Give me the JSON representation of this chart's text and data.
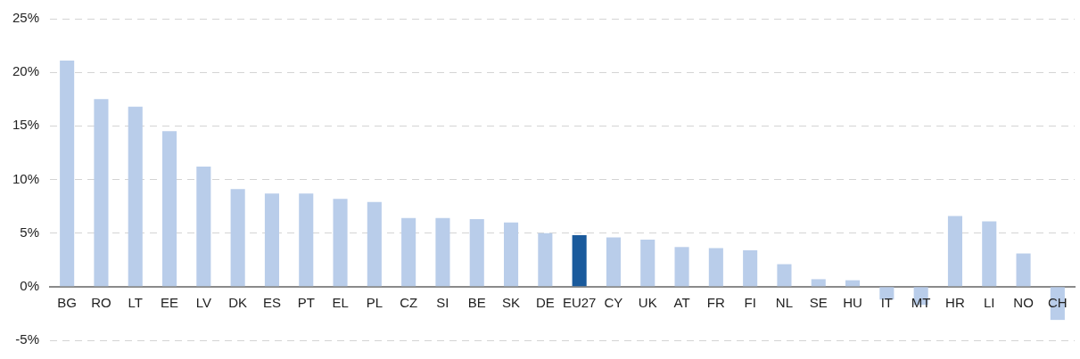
{
  "chart_data": {
    "type": "bar",
    "categories": [
      "BG",
      "RO",
      "LT",
      "EE",
      "LV",
      "DK",
      "ES",
      "PT",
      "EL",
      "PL",
      "CZ",
      "SI",
      "BE",
      "SK",
      "DE",
      "EU27",
      "CY",
      "UK",
      "AT",
      "FR",
      "FI",
      "NL",
      "SE",
      "HU",
      "IT",
      "MT",
      "HR",
      "LI",
      "NO",
      "CH"
    ],
    "values": [
      21.1,
      17.5,
      16.8,
      14.5,
      11.2,
      9.1,
      8.7,
      8.7,
      8.2,
      7.9,
      6.4,
      6.4,
      6.3,
      6.0,
      5.0,
      4.8,
      4.6,
      4.4,
      3.7,
      3.6,
      3.4,
      2.1,
      0.7,
      0.6,
      -1.2,
      -1.7,
      6.6,
      6.1,
      3.1,
      -3.1
    ],
    "colors": [
      "#b9cdea",
      "#b9cdea",
      "#b9cdea",
      "#b9cdea",
      "#b9cdea",
      "#b9cdea",
      "#b9cdea",
      "#b9cdea",
      "#b9cdea",
      "#b9cdea",
      "#b9cdea",
      "#b9cdea",
      "#b9cdea",
      "#b9cdea",
      "#b9cdea",
      "#1a5a9c",
      "#b9cdea",
      "#b9cdea",
      "#b9cdea",
      "#b9cdea",
      "#b9cdea",
      "#b9cdea",
      "#b9cdea",
      "#b9cdea",
      "#b9cdea",
      "#b9cdea",
      "#b9cdea",
      "#b9cdea",
      "#b9cdea",
      "#b9cdea"
    ],
    "ylim": [
      -5,
      25
    ],
    "yticks": [
      {
        "value": -5,
        "label": "-5%"
      },
      {
        "value": 0,
        "label": "0%"
      },
      {
        "value": 5,
        "label": "5%"
      },
      {
        "value": 10,
        "label": "10%"
      },
      {
        "value": 15,
        "label": "15%"
      },
      {
        "value": 20,
        "label": "20%"
      },
      {
        "value": 25,
        "label": "25%"
      }
    ],
    "grid": "y",
    "legend": false
  }
}
